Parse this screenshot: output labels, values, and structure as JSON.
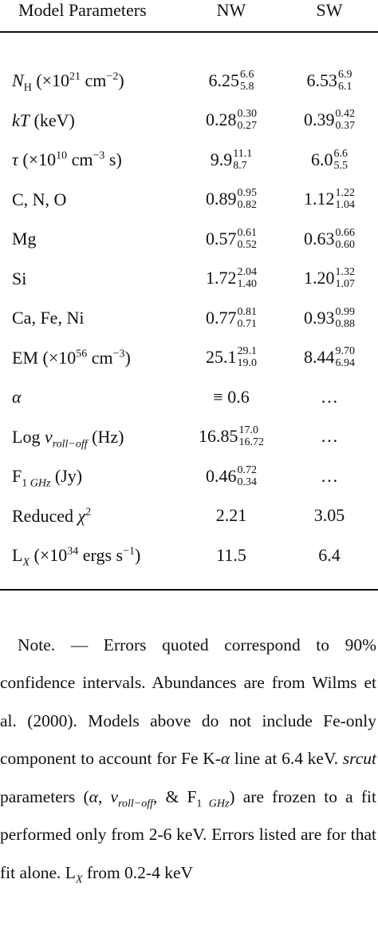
{
  "table": {
    "header": [
      "Model Parameters",
      "NW",
      "SW"
    ],
    "rows": [
      {
        "label": [
          "N",
          "H",
          " (×10",
          "21",
          " cm",
          "−2",
          ")"
        ],
        "nw": {
          "value": "6.25",
          "upper": "6.6",
          "lower": "5.8"
        },
        "sw": {
          "value": "6.53",
          "upper": "6.9",
          "lower": "6.1"
        }
      },
      {
        "label": [
          "kT",
          " (keV)"
        ],
        "nw": {
          "value": "0.28",
          "upper": "0.30",
          "lower": "0.27"
        },
        "sw": {
          "value": "0.39",
          "upper": "0.42",
          "lower": "0.37"
        }
      },
      {
        "label": [
          "τ",
          " (×10",
          "10",
          " cm",
          "−3",
          " s)"
        ],
        "nw": {
          "value": "9.9",
          "upper": "11.1",
          "lower": "8.7"
        },
        "sw": {
          "value": "6.0",
          "upper": "6.6",
          "lower": "5.5"
        }
      },
      {
        "label": [
          "C, N, O"
        ],
        "nw": {
          "value": "0.89",
          "upper": "0.95",
          "lower": "0.82"
        },
        "sw": {
          "value": "1.12",
          "upper": "1.22",
          "lower": "1.04"
        }
      },
      {
        "label": [
          "Mg"
        ],
        "nw": {
          "value": "0.57",
          "upper": "0.61",
          "lower": "0.52"
        },
        "sw": {
          "value": "0.63",
          "upper": "0.66",
          "lower": "0.60"
        }
      },
      {
        "label": [
          "Si"
        ],
        "nw": {
          "value": "1.72",
          "upper": "2.04",
          "lower": "1.40"
        },
        "sw": {
          "value": "1.20",
          "upper": "1.32",
          "lower": "1.07"
        }
      },
      {
        "label": [
          "Ca, Fe, Ni"
        ],
        "nw": {
          "value": "0.77",
          "upper": "0.81",
          "lower": "0.71"
        },
        "sw": {
          "value": "0.93",
          "upper": "0.99",
          "lower": "0.88"
        }
      },
      {
        "label": [
          "EM (×10",
          "56",
          " cm",
          "−3",
          ")"
        ],
        "nw": {
          "value": "25.1",
          "upper": "29.1",
          "lower": "19.0"
        },
        "sw": {
          "value": "8.44",
          "upper": "9.70",
          "lower": "6.94"
        }
      },
      {
        "label": [
          "α"
        ],
        "nw": {
          "value": "≡ 0.6"
        },
        "sw": {
          "value": "…"
        }
      },
      {
        "label": [
          "Log ",
          "ν",
          "roll−off",
          " (Hz)"
        ],
        "nw": {
          "value": "16.85",
          "upper": "17.0",
          "lower": "16.72"
        },
        "sw": {
          "value": "…"
        }
      },
      {
        "label": [
          "F",
          "1 ",
          "GHz",
          " (Jy)"
        ],
        "nw": {
          "value": "0.46",
          "upper": "0.72",
          "lower": "0.34"
        },
        "sw": {
          "value": "…"
        }
      },
      {
        "label": [
          "Reduced ",
          "χ",
          "2"
        ],
        "nw": {
          "value": "2.21"
        },
        "sw": {
          "value": "3.05"
        }
      },
      {
        "label": [
          "L",
          "X",
          " (×10",
          "34",
          " ergs s",
          "−1",
          ")"
        ],
        "nw": {
          "value": "11.5"
        },
        "sw": {
          "value": "6.4"
        }
      }
    ]
  },
  "note": [
    "Note. — Errors quoted correspond to 90% confidence intervals. Abundances are from Wilms et al. (2000). Models above do not include Fe-only component to account for Fe K-",
    "α",
    " line at 6.4 keV. ",
    "srcut",
    " parameters (",
    "α",
    ", ",
    "ν",
    "roll−off",
    ", & F",
    "1 ",
    "GHz",
    ") are frozen to a fit performed only from 2-6 keV. Errors listed are for that fit alone. L",
    "X",
    " from 0.2-4 keV"
  ]
}
